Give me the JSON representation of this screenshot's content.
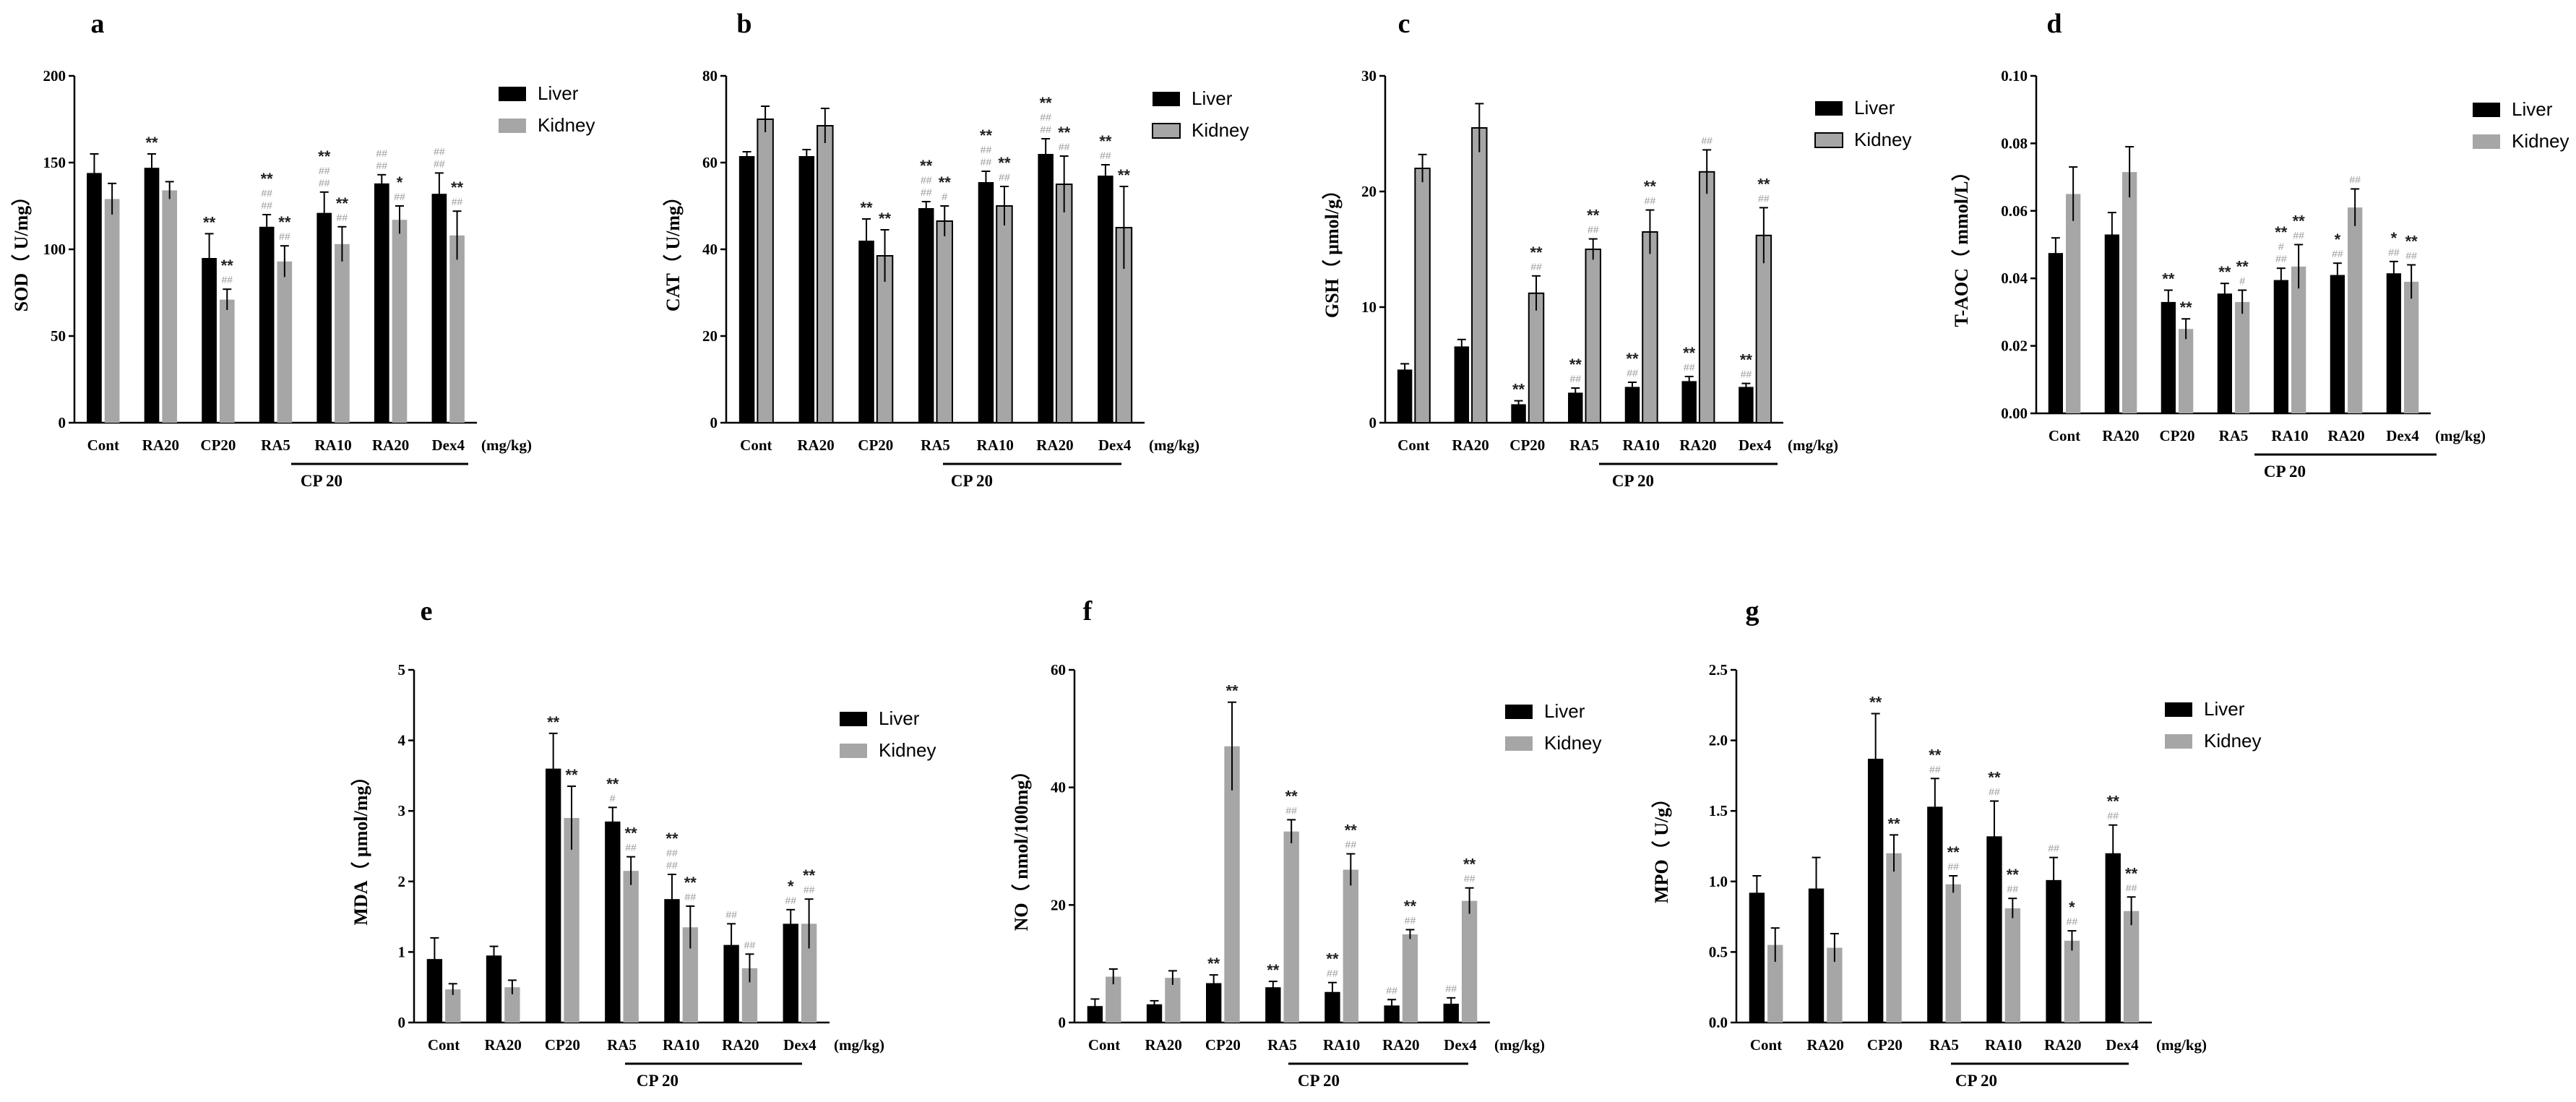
{
  "colors": {
    "liver": "#000000",
    "kidney": "#a6a6a6",
    "sig_star": "#222222",
    "sig_hash": "#9a9a9a"
  },
  "common": {
    "unit_label": "(mg/kg)",
    "group_label": "CP 20",
    "legend": [
      "Liver",
      "Kidney"
    ]
  },
  "chart_data": [
    {
      "panel": "a",
      "type": "bar",
      "ylabel": "SOD（ U/mg）",
      "ylim": [
        0,
        200
      ],
      "yticks": [
        "0",
        "50",
        "100",
        "150",
        "200"
      ],
      "categories": [
        "Cont",
        "RA20",
        "CP20",
        "RA5",
        "RA10",
        "RA20",
        "Dex4"
      ],
      "series": [
        {
          "name": "Liver",
          "values": [
            144,
            147,
            95,
            113,
            121,
            138,
            132
          ],
          "errors": [
            11,
            8,
            14,
            7,
            12,
            5,
            12
          ]
        },
        {
          "name": "Kidney",
          "values": [
            129,
            134,
            71,
            93,
            103,
            117,
            108
          ],
          "errors": [
            9,
            5,
            6,
            9,
            10,
            8,
            14
          ]
        }
      ],
      "annotations": [
        [
          [],
          [
            "**"
          ],
          [
            "**"
          ],
          [
            "**",
            "##",
            "##"
          ],
          [
            "**",
            "##",
            "##"
          ],
          [
            "##",
            "##"
          ],
          [
            "##",
            "##"
          ]
        ],
        [
          [],
          [],
          [
            "**",
            "##"
          ],
          [
            "**",
            "##"
          ],
          [
            "**",
            "##"
          ],
          [
            "*",
            "##"
          ],
          [
            "**",
            "##"
          ]
        ]
      ]
    },
    {
      "panel": "b",
      "type": "bar",
      "ylabel": "CAT（ U/mg）",
      "ylim": [
        0,
        80
      ],
      "yticks": [
        "0",
        "20",
        "40",
        "60",
        "80"
      ],
      "categories": [
        "Cont",
        "RA20",
        "CP20",
        "RA5",
        "RA10",
        "RA20",
        "Dex4"
      ],
      "series": [
        {
          "name": "Liver",
          "values": [
            61.5,
            61.5,
            42,
            49.5,
            55.5,
            62,
            57
          ],
          "errors": [
            1,
            1.5,
            5,
            1.5,
            2.5,
            3.5,
            2.5
          ]
        },
        {
          "name": "Kidney",
          "values": [
            70,
            68.5,
            38.5,
            46.5,
            50,
            55,
            45
          ],
          "errors": [
            3,
            4,
            6,
            3.5,
            4.5,
            6.5,
            9.5
          ]
        }
      ],
      "annotations": [
        [
          [],
          [],
          [
            "**"
          ],
          [
            "**",
            "##",
            "##"
          ],
          [
            "**",
            "##",
            "##"
          ],
          [
            "**",
            "##",
            "##"
          ],
          [
            "**",
            "##"
          ]
        ],
        [
          [],
          [],
          [
            "**"
          ],
          [
            "**",
            "#"
          ],
          [
            "**",
            "##"
          ],
          [
            "**",
            "##"
          ],
          [
            "**"
          ]
        ]
      ]
    },
    {
      "panel": "c",
      "type": "bar",
      "ylabel": "GSH（ μmol/g）",
      "ylim": [
        0,
        30
      ],
      "yticks": [
        "0",
        "10",
        "20",
        "30"
      ],
      "categories": [
        "Cont",
        "RA20",
        "CP20",
        "RA5",
        "RA10",
        "RA20",
        "Dex4"
      ],
      "series": [
        {
          "name": "Liver",
          "values": [
            4.6,
            6.6,
            1.6,
            2.6,
            3.1,
            3.6,
            3.1
          ],
          "errors": [
            0.5,
            0.6,
            0.3,
            0.4,
            0.4,
            0.4,
            0.3
          ]
        },
        {
          "name": "Kidney",
          "values": [
            22,
            25.5,
            11.2,
            15,
            16.5,
            21.7,
            16.2
          ],
          "errors": [
            1.2,
            2.1,
            1.5,
            0.9,
            1.9,
            1.9,
            2.4
          ]
        }
      ],
      "annotations": [
        [
          [],
          [],
          [
            "**"
          ],
          [
            "**",
            "##"
          ],
          [
            "**",
            "##"
          ],
          [
            "**",
            "##"
          ],
          [
            "**",
            "##"
          ]
        ],
        [
          [],
          [],
          [
            "**",
            "##"
          ],
          [
            "**",
            "##"
          ],
          [
            "**",
            "##"
          ],
          [
            "##"
          ],
          [
            "**",
            "##"
          ]
        ]
      ]
    },
    {
      "panel": "d",
      "type": "bar",
      "ylabel": "T-AOC（ mmol/L）",
      "ylim": [
        0,
        0.1
      ],
      "yticks": [
        "0.00",
        "0.02",
        "0.04",
        "0.06",
        "0.08",
        "0.10"
      ],
      "categories": [
        "Cont",
        "RA20",
        "CP20",
        "RA5",
        "RA10",
        "RA20",
        "Dex4"
      ],
      "series": [
        {
          "name": "Liver",
          "values": [
            0.0475,
            0.053,
            0.033,
            0.0355,
            0.0395,
            0.041,
            0.0415
          ],
          "errors": [
            0.0045,
            0.0065,
            0.0035,
            0.003,
            0.0035,
            0.0035,
            0.0035
          ]
        },
        {
          "name": "Kidney",
          "values": [
            0.065,
            0.0715,
            0.025,
            0.033,
            0.0435,
            0.061,
            0.039
          ],
          "errors": [
            0.008,
            0.0075,
            0.003,
            0.0035,
            0.0065,
            0.0055,
            0.005
          ]
        }
      ],
      "annotations": [
        [
          [],
          [],
          [
            "**"
          ],
          [
            "**"
          ],
          [
            "**",
            "#",
            "##"
          ],
          [
            "*",
            "##"
          ],
          [
            "*",
            "##"
          ]
        ],
        [
          [],
          [],
          [
            "**"
          ],
          [
            "**",
            "#"
          ],
          [
            "**",
            "##"
          ],
          [
            "##"
          ],
          [
            "**",
            "##"
          ]
        ]
      ]
    },
    {
      "panel": "e",
      "type": "bar",
      "ylabel": "MDA（ μmol/mg）",
      "ylim": [
        0,
        5
      ],
      "yticks": [
        "0",
        "1",
        "2",
        "3",
        "4",
        "5"
      ],
      "categories": [
        "Cont",
        "RA20",
        "CP20",
        "RA5",
        "RA10",
        "RA20",
        "Dex4"
      ],
      "series": [
        {
          "name": "Liver",
          "values": [
            0.9,
            0.95,
            3.6,
            2.85,
            1.75,
            1.1,
            1.4
          ],
          "errors": [
            0.3,
            0.13,
            0.5,
            0.2,
            0.35,
            0.3,
            0.2
          ]
        },
        {
          "name": "Kidney",
          "values": [
            0.47,
            0.5,
            2.9,
            2.15,
            1.35,
            0.77,
            1.4
          ],
          "errors": [
            0.08,
            0.1,
            0.45,
            0.2,
            0.3,
            0.2,
            0.35
          ]
        }
      ],
      "annotations": [
        [
          [],
          [],
          [
            "**"
          ],
          [
            "**",
            "#"
          ],
          [
            "**",
            "##",
            "##"
          ],
          [
            "##"
          ],
          [
            "*",
            "##"
          ]
        ],
        [
          [],
          [],
          [
            "**"
          ],
          [
            "**",
            "##"
          ],
          [
            "**",
            "##"
          ],
          [
            "##"
          ],
          [
            "**",
            "##"
          ]
        ]
      ]
    },
    {
      "panel": "f",
      "type": "bar",
      "ylabel": "NO（ nmol/100mg）",
      "ylim": [
        0,
        60
      ],
      "yticks": [
        "0",
        "20",
        "40",
        "60"
      ],
      "categories": [
        "Cont",
        "RA20",
        "CP20",
        "RA5",
        "RA10",
        "RA20",
        "Dex4"
      ],
      "series": [
        {
          "name": "Liver",
          "values": [
            2.8,
            3.1,
            6.7,
            6.0,
            5.2,
            2.9,
            3.2
          ],
          "errors": [
            1.2,
            0.6,
            1.4,
            1.0,
            1.6,
            1.0,
            1.0
          ]
        },
        {
          "name": "Kidney",
          "values": [
            7.8,
            7.6,
            47,
            32.5,
            26,
            15,
            20.7
          ],
          "errors": [
            1.3,
            1.2,
            7.5,
            2.0,
            2.7,
            0.8,
            2.2
          ]
        }
      ],
      "annotations": [
        [
          [],
          [],
          [
            "**"
          ],
          [
            "**"
          ],
          [
            "**",
            "##"
          ],
          [
            "##"
          ],
          [
            "##"
          ]
        ],
        [
          [],
          [],
          [
            "**"
          ],
          [
            "**",
            "##"
          ],
          [
            "**",
            "##"
          ],
          [
            "**",
            "##"
          ],
          [
            "**",
            "##"
          ]
        ]
      ]
    },
    {
      "panel": "g",
      "type": "bar",
      "ylabel": "MPO（ U/g）",
      "ylim": [
        0,
        2.5
      ],
      "yticks": [
        "0.0",
        "0.5",
        "1.0",
        "1.5",
        "2.0",
        "2.5"
      ],
      "categories": [
        "Cont",
        "RA20",
        "CP20",
        "RA5",
        "RA10",
        "RA20",
        "Dex4"
      ],
      "series": [
        {
          "name": "Liver",
          "values": [
            0.92,
            0.95,
            1.87,
            1.53,
            1.32,
            1.01,
            1.2
          ],
          "errors": [
            0.12,
            0.22,
            0.32,
            0.2,
            0.25,
            0.16,
            0.2
          ]
        },
        {
          "name": "Kidney",
          "values": [
            0.55,
            0.53,
            1.2,
            0.98,
            0.81,
            0.58,
            0.79
          ],
          "errors": [
            0.12,
            0.1,
            0.13,
            0.06,
            0.07,
            0.07,
            0.1
          ]
        }
      ],
      "annotations": [
        [
          [],
          [],
          [
            "**"
          ],
          [
            "**",
            "##"
          ],
          [
            "**",
            "##"
          ],
          [
            "##"
          ],
          [
            "**",
            "##"
          ]
        ],
        [
          [],
          [],
          [
            "**"
          ],
          [
            "**",
            "##"
          ],
          [
            "**",
            "##"
          ],
          [
            "*",
            "##"
          ],
          [
            "**",
            "##"
          ]
        ]
      ]
    }
  ]
}
